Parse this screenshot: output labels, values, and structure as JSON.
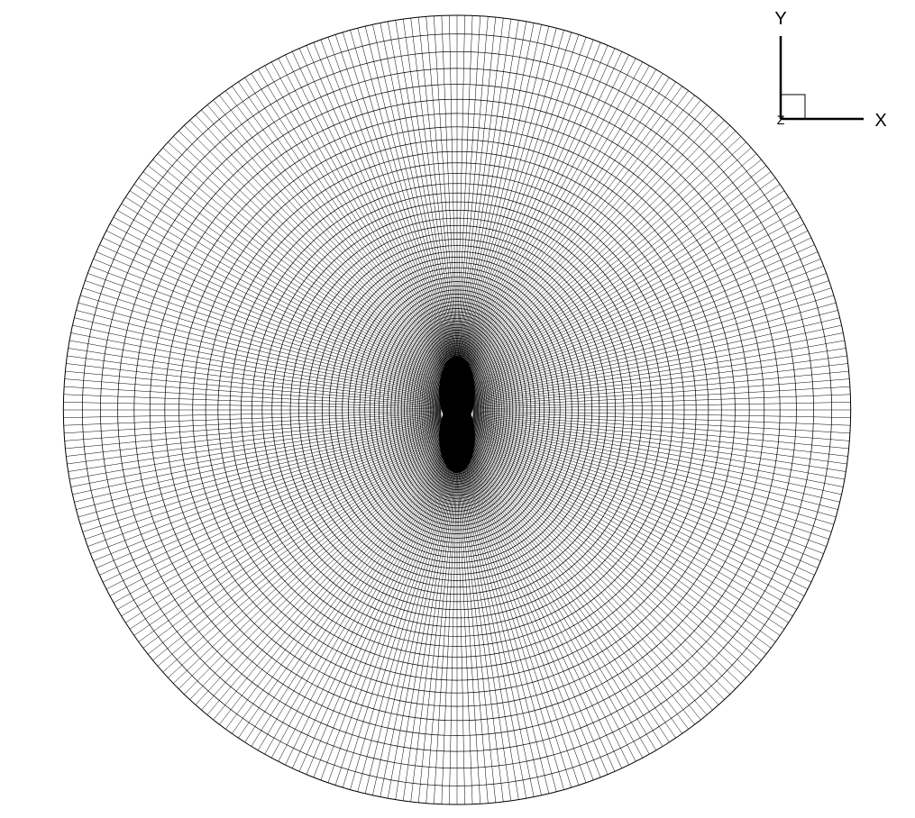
{
  "axes_triad": {
    "y_label": "Y",
    "x_label": "X",
    "z_label": "Z"
  }
}
